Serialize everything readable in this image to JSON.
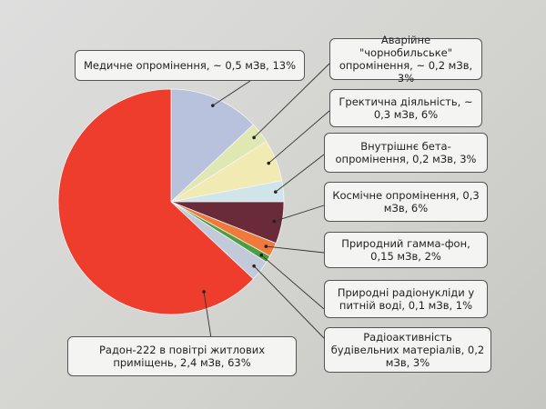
{
  "chart_data": {
    "type": "pie",
    "categories": [
      "Медичне опромінення, ~ 0,5 мЗв, 13%",
      "Аварійне \"чорнобильське\" опромінення, ~ 0,2 мЗв, 3%",
      "Гректична діяльність, ~ 0,3 мЗв, 6%",
      "Внутрішнє бета-опромінення, 0,2 мЗв, 3%",
      "Космічне опромінення, 0,3 мЗв, 6%",
      "Природний гамма-фон, 0,15 мЗв, 2%",
      "Природні радіонукліди у питній воді, 0,1 мЗв, 1%",
      "Радіоактивність будівельних матеріалів, 0,2 мЗв, 3%",
      "Радон-222 в повітрі житлових приміщень, 2,4 мЗв, 63%"
    ],
    "values": [
      13,
      3,
      6,
      3,
      6,
      2,
      1,
      3,
      63
    ],
    "colors": [
      "#b9c2dc",
      "#dfe8b2",
      "#f1eab2",
      "#cfe5ea",
      "#6b2a3a",
      "#ef7a3c",
      "#4c9e3e",
      "#c2c9da",
      "#ee3d2c"
    ]
  }
}
